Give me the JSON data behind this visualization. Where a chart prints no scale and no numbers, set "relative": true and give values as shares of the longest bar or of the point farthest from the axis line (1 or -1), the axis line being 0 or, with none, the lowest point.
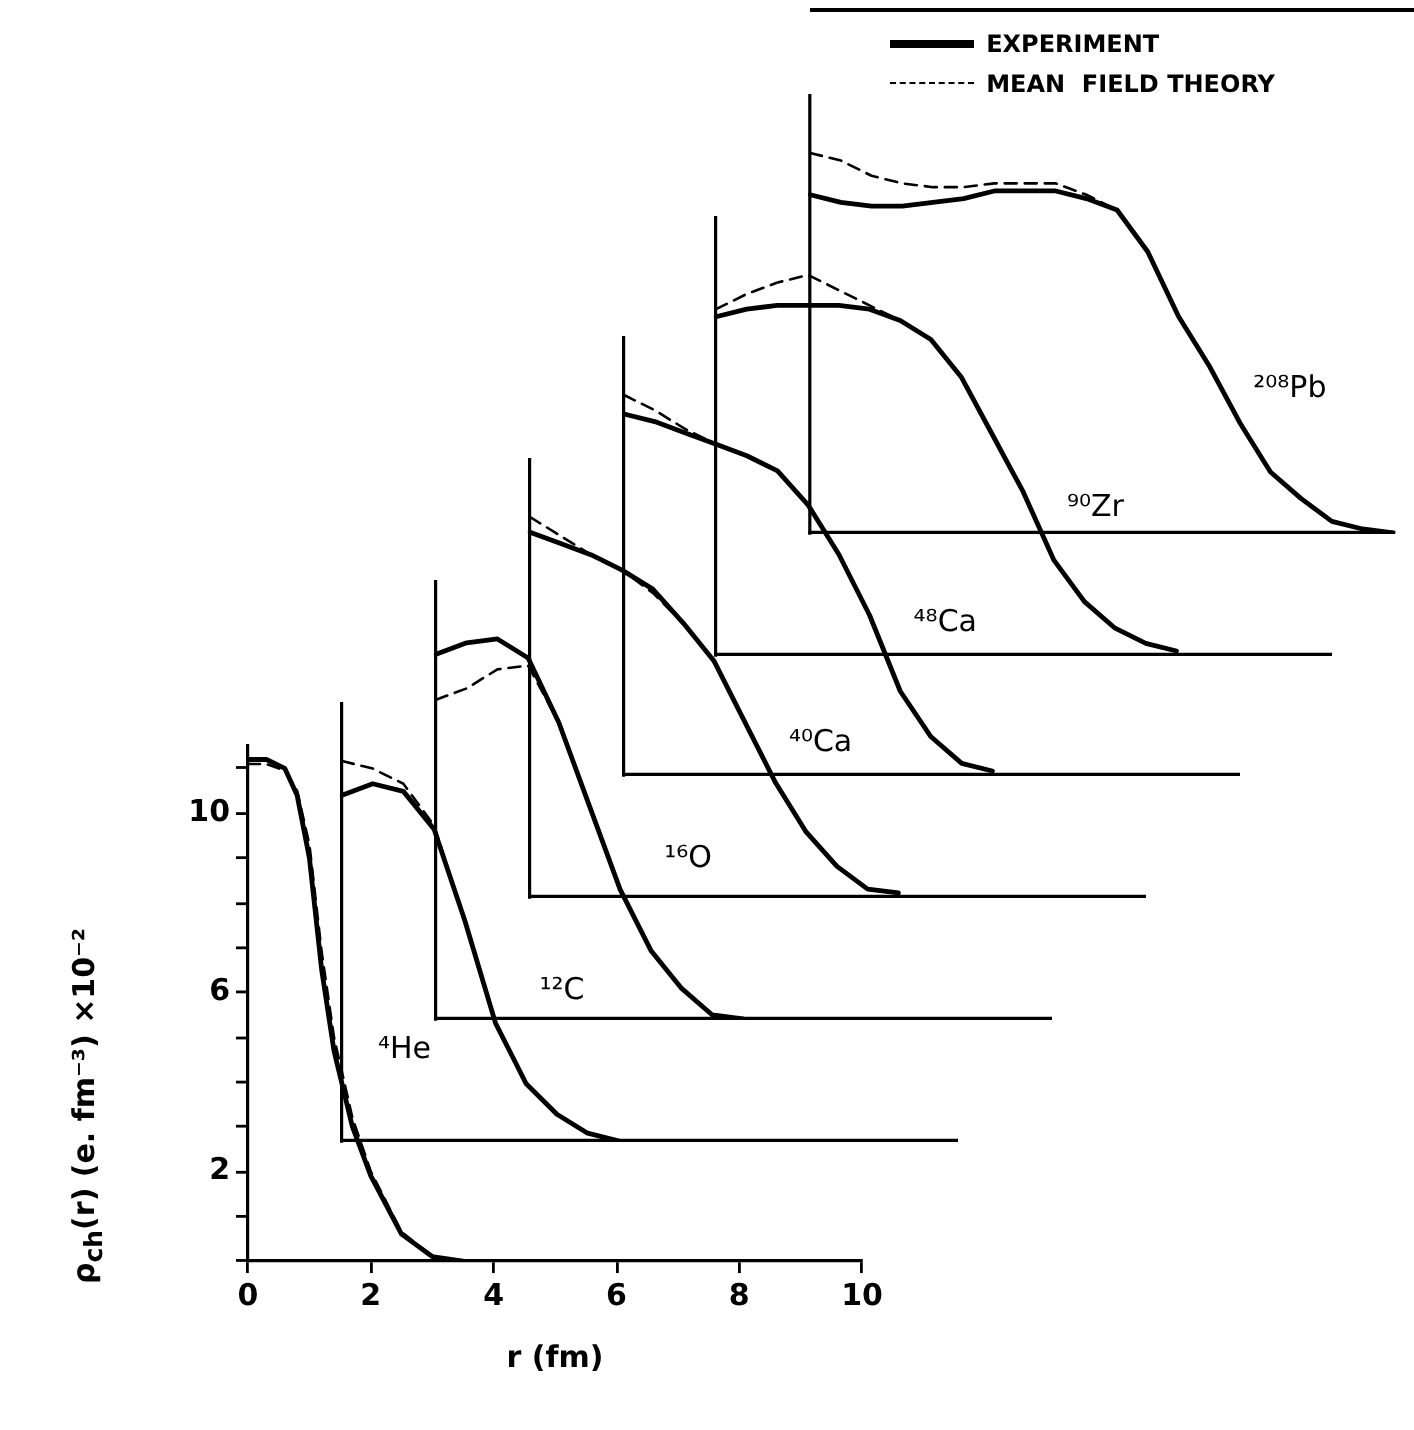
{
  "chart_data": [
    {
      "type": "line",
      "xlabel": "r (fm)",
      "ylabel": "ρ$_{ch}$(r) (e. fm⁻³) ×10⁻²",
      "marker": "none",
      "xlim": [
        0,
        10
      ],
      "ylim": [
        0,
        11.5
      ],
      "xticks": [
        0,
        2,
        4,
        6,
        8,
        10
      ],
      "yticks": [
        {
          "value": 0,
          "label": null
        },
        {
          "value": 1,
          "label": null
        },
        2,
        {
          "value": 3,
          "label": null
        },
        {
          "value": 4,
          "label": null
        },
        {
          "value": 5,
          "label": null
        },
        6,
        {
          "value": 7,
          "label": null
        },
        {
          "value": 8,
          "label": null
        },
        {
          "value": 9,
          "label": null
        },
        10,
        {
          "value": 11,
          "label": null
        }
      ],
      "annotations": [
        "⁴He"
      ],
      "x": [
        0,
        0.3,
        0.6,
        0.8,
        1.0,
        1.2,
        1.4,
        1.7,
        2.0,
        2.5,
        3.0,
        3.5
      ],
      "series": [
        {
          "color": "#000000",
          "line_style": "solid",
          "values": [
            11.2,
            11.2,
            11.0,
            10.4,
            9.0,
            6.5,
            4.7,
            3.0,
            1.9,
            0.6,
            0.1,
            0
          ]
        },
        {
          "color": "#000000",
          "line_style": "dashed",
          "values": [
            11.1,
            11.1,
            10.95,
            10.5,
            9.3,
            6.9,
            5.0,
            3.2,
            2.0,
            0.65,
            0.1,
            0
          ]
        }
      ]
    },
    {
      "type": "line",
      "relative": true,
      "marker": "none",
      "annotations": [
        "¹²C"
      ],
      "categories": [
        null,
        null,
        null,
        null,
        null,
        null,
        null,
        null,
        null,
        null,
        null,
        null,
        null,
        null,
        null,
        null,
        null,
        null,
        null,
        null,
        null
      ],
      "series": [
        {
          "color": "#000000",
          "line_style": "solid",
          "values": [
            0.91,
            0.94,
            0.92,
            0.82,
            0.58,
            0.31,
            0.15,
            0.07,
            0.02,
            0,
            null,
            null,
            null,
            null,
            null,
            null,
            null,
            null,
            null,
            null,
            null
          ]
        },
        {
          "color": "#000000",
          "line_style": "dashed",
          "values": [
            1,
            0.98,
            0.94,
            0.83,
            0.58,
            0.31,
            0.15,
            0.07,
            0.02,
            0,
            null,
            null,
            null,
            null,
            null,
            null,
            null,
            null,
            null,
            null,
            null
          ]
        }
      ]
    },
    {
      "type": "line",
      "relative": true,
      "marker": "none",
      "annotations": [
        "¹⁶O"
      ],
      "categories": [
        null,
        null,
        null,
        null,
        null,
        null,
        null,
        null,
        null,
        null,
        null,
        null,
        null,
        null,
        null,
        null,
        null,
        null,
        null,
        null,
        null
      ],
      "series": [
        {
          "color": "#000000",
          "line_style": "solid",
          "values": [
            0.96,
            0.99,
            1.0,
            0.95,
            0.78,
            0.56,
            0.34,
            0.18,
            0.08,
            0.01,
            0,
            null,
            null,
            null,
            null,
            null,
            null,
            null,
            null,
            null,
            null
          ]
        },
        {
          "color": "#000000",
          "line_style": "dashed",
          "values": [
            0.84,
            0.87,
            0.92,
            0.93,
            0.78,
            0.56,
            0.34,
            0.18,
            0.08,
            0.01,
            0,
            null,
            null,
            null,
            null,
            null,
            null,
            null,
            null,
            null,
            null
          ]
        }
      ]
    },
    {
      "type": "line",
      "relative": true,
      "marker": "none",
      "annotations": [
        "⁴⁰Ca"
      ],
      "categories": [
        null,
        null,
        null,
        null,
        null,
        null,
        null,
        null,
        null,
        null,
        null,
        null,
        null,
        null,
        null,
        null,
        null,
        null,
        null,
        null,
        null
      ],
      "series": [
        {
          "color": "#000000",
          "line_style": "solid",
          "values": [
            0.96,
            0.93,
            0.9,
            0.86,
            0.81,
            0.72,
            0.62,
            0.46,
            0.3,
            0.17,
            0.08,
            0.02,
            0.01,
            null,
            null,
            null,
            null,
            null,
            null,
            null,
            null
          ]
        },
        {
          "color": "#000000",
          "line_style": "dashed",
          "values": [
            1,
            0.95,
            0.9,
            0.86,
            0.8,
            0.72,
            0.62,
            0.46,
            0.3,
            0.17,
            0.08,
            0.02,
            0.01,
            null,
            null,
            null,
            null,
            null,
            null,
            null,
            null
          ]
        }
      ]
    },
    {
      "type": "line",
      "relative": true,
      "marker": "none",
      "annotations": [
        "⁴⁸Ca"
      ],
      "categories": [
        null,
        null,
        null,
        null,
        null,
        null,
        null,
        null,
        null,
        null,
        null,
        null,
        null,
        null,
        null,
        null,
        null,
        null,
        null,
        null,
        null
      ],
      "series": [
        {
          "color": "#000000",
          "line_style": "solid",
          "values": [
            0.95,
            0.93,
            0.9,
            0.87,
            0.84,
            0.8,
            0.71,
            0.58,
            0.42,
            0.22,
            0.1,
            0.03,
            0.01,
            null,
            null,
            null,
            null,
            null,
            null,
            null,
            null
          ]
        },
        {
          "color": "#000000",
          "line_style": "dashed",
          "values": [
            1,
            0.96,
            0.91,
            0.87,
            0.84,
            0.8,
            0.71,
            0.58,
            0.42,
            0.22,
            0.1,
            0.03,
            0.01,
            null,
            null,
            null,
            null,
            null,
            null,
            null,
            null
          ]
        }
      ]
    },
    {
      "type": "line",
      "relative": true,
      "marker": "none",
      "annotations": [
        "⁹⁰Zr"
      ],
      "categories": [
        null,
        null,
        null,
        null,
        null,
        null,
        null,
        null,
        null,
        null,
        null,
        null,
        null,
        null,
        null,
        null,
        null,
        null,
        null,
        null,
        null
      ],
      "series": [
        {
          "color": "#000000",
          "line_style": "solid",
          "values": [
            0.89,
            0.91,
            0.92,
            0.92,
            0.92,
            0.91,
            0.88,
            0.83,
            0.73,
            0.58,
            0.43,
            0.25,
            0.14,
            0.07,
            0.03,
            0.01,
            null,
            null,
            null,
            null,
            null
          ]
        },
        {
          "color": "#000000",
          "line_style": "dashed",
          "values": [
            0.91,
            0.95,
            0.98,
            1,
            0.96,
            0.92,
            0.88,
            0.83,
            0.73,
            0.58,
            0.43,
            0.25,
            0.14,
            0.07,
            0.03,
            0.01,
            null,
            null,
            null,
            null,
            null
          ]
        }
      ]
    },
    {
      "type": "line",
      "relative": true,
      "marker": "none",
      "legend": "top right",
      "annotations": [
        "²⁰⁸Pb"
      ],
      "categories": [
        null,
        null,
        null,
        null,
        null,
        null,
        null,
        null,
        null,
        null,
        null,
        null,
        null,
        null,
        null,
        null,
        null,
        null,
        null,
        null
      ],
      "series": [
        {
          "name": "EXPERIMENT",
          "color": "#000000",
          "line_style": "solid",
          "values": [
            0.89,
            0.87,
            0.86,
            0.86,
            0.87,
            0.88,
            0.9,
            0.9,
            0.9,
            0.88,
            0.85,
            0.74,
            0.57,
            0.44,
            0.29,
            0.16,
            0.09,
            0.03,
            0.01,
            0
          ]
        },
        {
          "name": "MEAN  FIELD THEORY",
          "color": "#000000",
          "line_style": "dashed",
          "values": [
            1,
            0.98,
            0.94,
            0.92,
            0.91,
            0.91,
            0.92,
            0.92,
            0.92,
            0.89,
            0.85,
            0.74,
            0.57,
            0.44,
            0.29,
            0.16,
            0.09,
            0.03,
            0.01,
            0
          ]
        }
      ]
    }
  ]
}
